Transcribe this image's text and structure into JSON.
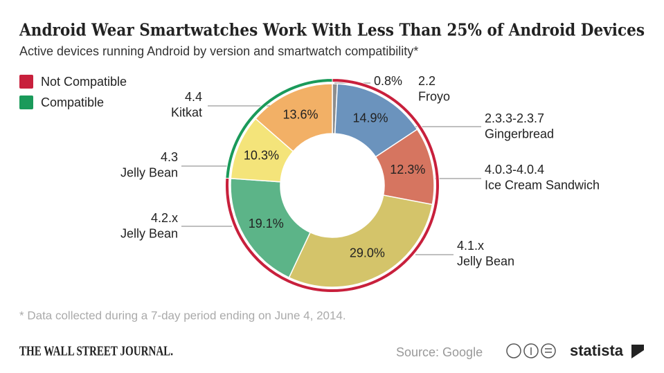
{
  "chart_data": {
    "type": "donut",
    "title": "Android Wear Smartwatches Work With Less Than 25% of Android Devices",
    "subtitle": "Active devices running Android by version and smartwatch compatibility*",
    "note": "* Data collected during a 7-day period ending on June 4, 2014.",
    "source": "Source: Google",
    "series": [
      {
        "name": "Not Compatible",
        "color": "#c8203c",
        "categories": [
          "2.2\nFroyo",
          "2.3.3-2.3.7\nGingerbread",
          "4.0.3-4.0.4\nIce Cream Sandwich",
          "4.1.x\nJelly Bean",
          "4.2.x\nJelly Bean"
        ],
        "values": [
          0.8,
          14.9,
          12.3,
          29.0,
          19.1
        ],
        "value_labels": [
          "0.8%",
          "14.9%",
          "12.3%",
          "29.0%",
          "19.1%"
        ],
        "colors": [
          "#8e8e8e",
          "#6b93bd",
          "#d67560",
          "#d4c46a",
          "#5cb488"
        ]
      },
      {
        "name": "Compatible",
        "color": "#1a9a5a",
        "categories": [
          "4.3\nJelly Bean",
          "4.4\nKitkat"
        ],
        "values": [
          10.3,
          13.6
        ],
        "value_labels": [
          "10.3%",
          "13.6%"
        ],
        "colors": [
          "#f4e47a",
          "#f2b066"
        ]
      }
    ]
  },
  "footer": {
    "publisher": "THE WALL STREET JOURNAL.",
    "brand": "statista"
  }
}
